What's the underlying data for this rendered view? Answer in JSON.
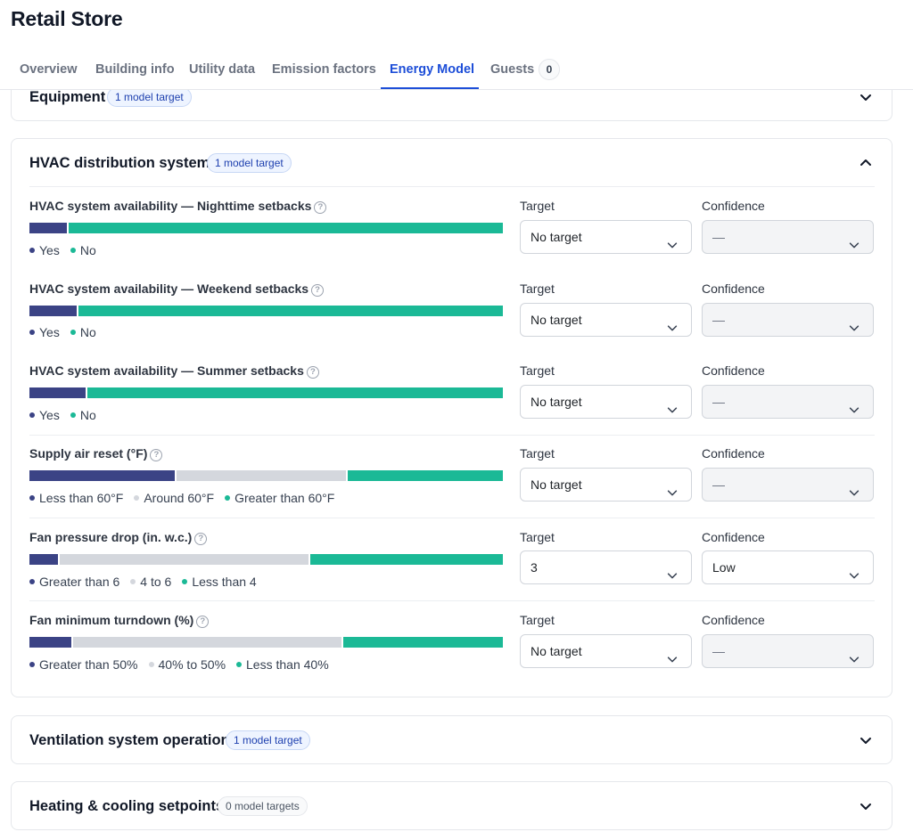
{
  "page": {
    "title": "Retail Store"
  },
  "tabs": [
    {
      "label": "Overview"
    },
    {
      "label": "Building info"
    },
    {
      "label": "Utility data"
    },
    {
      "label": "Emission factors"
    },
    {
      "label": "Energy Model"
    },
    {
      "label": "Guests",
      "count": "0"
    }
  ],
  "active_tab": "Energy Model",
  "sections": {
    "equipment": {
      "title": "Equipment",
      "badge": "1 model target",
      "expanded": false
    },
    "hvac": {
      "title": "HVAC distribution system",
      "badge": "1 model target",
      "expanded": true,
      "rows": [
        {
          "label": "HVAC system availability — Nighttime setbacks",
          "distribution": [
            8,
            92
          ],
          "legend": [
            "Yes",
            "No"
          ],
          "target_label": "Target",
          "target_value": "No target",
          "confidence_label": "Confidence",
          "confidence_value": "—"
        },
        {
          "label": "HVAC system availability — Weekend setbacks",
          "distribution": [
            10,
            90
          ],
          "legend": [
            "Yes",
            "No"
          ],
          "target_label": "Target",
          "target_value": "No target",
          "confidence_label": "Confidence",
          "confidence_value": "—"
        },
        {
          "label": "HVAC system availability — Summer setbacks",
          "distribution": [
            12,
            88
          ],
          "legend": [
            "Yes",
            "No"
          ],
          "target_label": "Target",
          "target_value": "No target",
          "confidence_label": "Confidence",
          "confidence_value": "—"
        },
        {
          "label": "Supply air reset (°F)",
          "distribution": [
            31,
            36,
            33
          ],
          "legend": [
            "Less than 60°F",
            "Around 60°F",
            "Greater than 60°F"
          ],
          "target_label": "Target",
          "target_value": "No target",
          "confidence_label": "Confidence",
          "confidence_value": "—"
        },
        {
          "label": "Fan pressure drop (in. w.c.)",
          "distribution": [
            6,
            53,
            41
          ],
          "legend": [
            "Greater than 6",
            "4 to 6",
            "Less than 4"
          ],
          "target_label": "Target",
          "target_value": "3",
          "confidence_label": "Confidence",
          "confidence_value": "Low"
        },
        {
          "label": "Fan minimum turndown (%)",
          "distribution": [
            9,
            57,
            34
          ],
          "legend": [
            "Greater than 50%",
            "40% to 50%",
            "Less than 40%"
          ],
          "target_label": "Target",
          "target_value": "No target",
          "confidence_label": "Confidence",
          "confidence_value": "—"
        }
      ]
    },
    "ventilation": {
      "title": "Ventilation system operation",
      "badge": "1 model target",
      "expanded": false
    },
    "setpoints": {
      "title": "Heating & cooling setpoints",
      "badge": "0 model targets",
      "expanded": false
    }
  },
  "colors": {
    "accent": "#1d4ed8",
    "navy": "#3b4385",
    "gray": "#d4d7dd",
    "teal": "#1bb996"
  },
  "icons": {
    "help": "question-circle-icon",
    "expand": "chevron-down-icon",
    "collapse": "chevron-up-icon"
  }
}
